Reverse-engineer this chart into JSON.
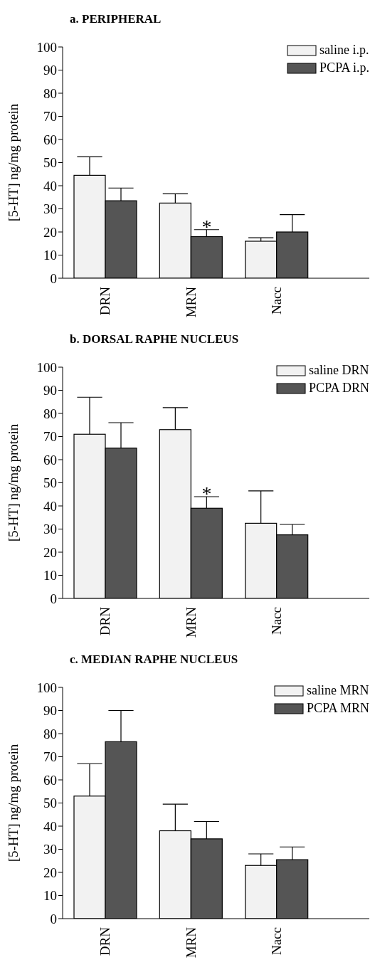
{
  "chart_data": [
    {
      "type": "bar",
      "title": "a. PERIPHERAL",
      "ylabel": "[5-HT] ng/mg protein",
      "categories": [
        "DRN",
        "MRN",
        "Nacc"
      ],
      "series": [
        {
          "name": "saline i.p.",
          "color": "#f2f2f2",
          "values": [
            44.5,
            32.5,
            16
          ],
          "errors": [
            [
              44.5,
              52.5
            ],
            [
              32.5,
              36.5
            ],
            [
              16,
              17.5
            ]
          ]
        },
        {
          "name": "PCPA i.p.",
          "color": "#555555",
          "values": [
            33.5,
            18,
            20
          ],
          "errors": [
            [
              33.5,
              39
            ],
            [
              18,
              21
            ],
            [
              20,
              27.5
            ]
          ]
        }
      ],
      "ylim": [
        0,
        100
      ],
      "yticks": [
        0,
        10,
        20,
        30,
        40,
        50,
        60,
        70,
        80,
        90,
        100
      ],
      "legend": "top right",
      "annotations": [
        {
          "text": "*",
          "x": "MRN",
          "y": 21
        }
      ]
    },
    {
      "type": "bar",
      "title": "b. DORSAL RAPHE NUCLEUS",
      "ylabel": "[5-HT] ng/mg protein",
      "categories": [
        "DRN",
        "MRN",
        "Nacc"
      ],
      "series": [
        {
          "name": "saline DRN",
          "color": "#f2f2f2",
          "values": [
            71,
            73,
            32.5
          ],
          "errors": [
            [
              71,
              87
            ],
            [
              73,
              82.5
            ],
            [
              32.5,
              46.5
            ]
          ]
        },
        {
          "name": "PCPA DRN",
          "color": "#555555",
          "values": [
            65,
            39,
            27.5
          ],
          "errors": [
            [
              65,
              76
            ],
            [
              39,
              44
            ],
            [
              27.5,
              32
            ]
          ]
        }
      ],
      "ylim": [
        0,
        100
      ],
      "yticks": [
        0,
        10,
        20,
        30,
        40,
        50,
        60,
        70,
        80,
        90,
        100
      ],
      "legend": "top right",
      "annotations": [
        {
          "text": "*",
          "x": "MRN",
          "y": 44
        }
      ]
    },
    {
      "type": "bar",
      "title": "c. MEDIAN RAPHE NUCLEUS",
      "ylabel": "[5-HT] ng/mg protein",
      "categories": [
        "DRN",
        "MRN",
        "Nacc"
      ],
      "series": [
        {
          "name": "saline MRN",
          "color": "#f2f2f2",
          "values": [
            53,
            38,
            23
          ],
          "errors": [
            [
              53,
              67
            ],
            [
              38,
              49.5
            ],
            [
              23,
              28
            ]
          ]
        },
        {
          "name": "PCPA MRN",
          "color": "#555555",
          "values": [
            76.5,
            34.5,
            25.5
          ],
          "errors": [
            [
              76.5,
              90
            ],
            [
              34.5,
              42
            ],
            [
              25.5,
              31
            ]
          ]
        }
      ],
      "ylim": [
        0,
        100
      ],
      "yticks": [
        0,
        10,
        20,
        30,
        40,
        50,
        60,
        70,
        80,
        90,
        100
      ],
      "legend": "top right"
    }
  ]
}
